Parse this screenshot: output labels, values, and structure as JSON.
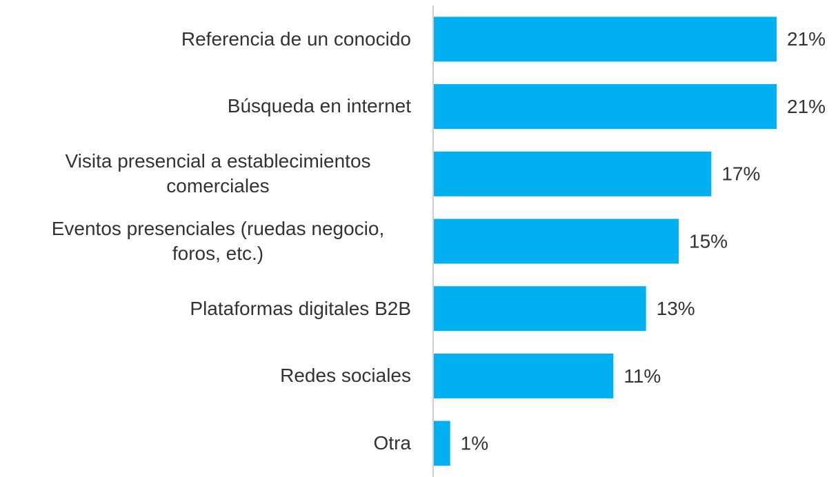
{
  "chart_data": {
    "type": "barh",
    "categories": [
      "Referencia de un conocido",
      "Búsqueda en internet",
      "Visita presencial a establecimientos comerciales",
      "Eventos presenciales (ruedas negocio, foros, etc.)",
      "Plataformas digitales B2B",
      "Redes sociales",
      "Otra"
    ],
    "values": [
      21,
      21,
      17,
      15,
      13,
      11,
      1
    ],
    "value_labels": [
      "21%",
      "21%",
      "17%",
      "15%",
      "13%",
      "11%",
      "1%"
    ],
    "color": "#00b0f0"
  }
}
